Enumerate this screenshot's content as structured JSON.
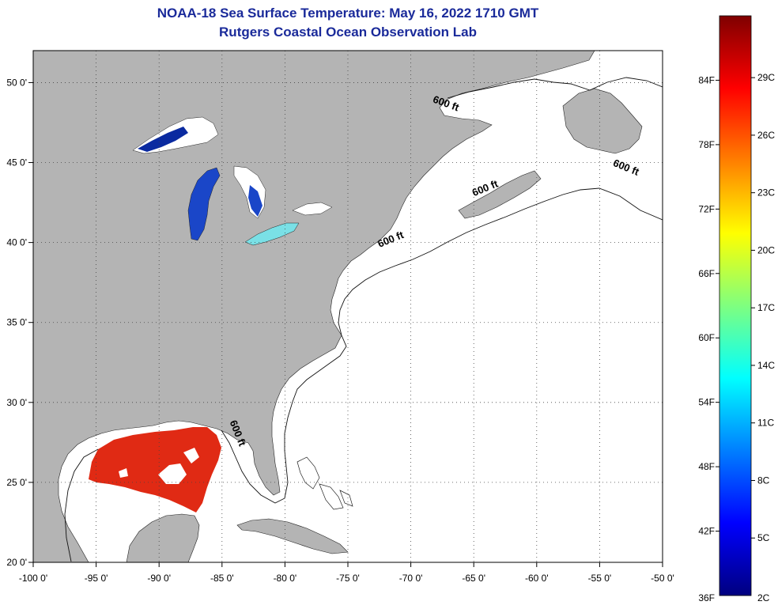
{
  "header": {
    "title": "NOAA-18 Sea Surface Temperature:  May 16, 2022 1710 GMT",
    "subtitle": "Rutgers Coastal Ocean Observation Lab"
  },
  "map": {
    "lon_range": [
      -100,
      -50
    ],
    "lat_range": [
      20,
      52
    ],
    "grid": "dotted",
    "lon_ticks": [
      {
        "value": -100,
        "label": "-100 0'"
      },
      {
        "value": -95,
        "label": "-95 0'"
      },
      {
        "value": -90,
        "label": "-90 0'"
      },
      {
        "value": -85,
        "label": "-85 0'"
      },
      {
        "value": -80,
        "label": "-80 0'"
      },
      {
        "value": -75,
        "label": "-75 0'"
      },
      {
        "value": -70,
        "label": "-70 0'"
      },
      {
        "value": -65,
        "label": "-65 0'"
      },
      {
        "value": -60,
        "label": "-60 0'"
      },
      {
        "value": -55,
        "label": "-55 0'"
      },
      {
        "value": -50,
        "label": "-50 0'"
      }
    ],
    "lat_ticks": [
      {
        "value": 20,
        "label": "20 0'"
      },
      {
        "value": 25,
        "label": "25 0'"
      },
      {
        "value": 30,
        "label": "30 0'"
      },
      {
        "value": 35,
        "label": "35 0'"
      },
      {
        "value": 40,
        "label": "40 0'"
      },
      {
        "value": 45,
        "label": "45 0'"
      },
      {
        "value": 50,
        "label": "50 0'"
      }
    ],
    "contour_labels": [
      {
        "text": "600 ft",
        "lon": -67.3,
        "lat": 48.5
      },
      {
        "text": "600 ft",
        "lon": -53.0,
        "lat": 44.5
      },
      {
        "text": "600 ft",
        "lon": -64.0,
        "lat": 43.2
      },
      {
        "text": "600 ft",
        "lon": -71.5,
        "lat": 40.0
      },
      {
        "text": "600 ft",
        "lon": -84.0,
        "lat": 28.0
      }
    ],
    "colors": {
      "land": "#b4b4b4",
      "ocean": "#ffffff",
      "gulf_sst": "#e02a14",
      "lake_cold": "#0a2aa0",
      "lake_erie": "#7ae0e6"
    }
  },
  "colorbar": {
    "colors": [
      "#00007f",
      "#0000ff",
      "#007fff",
      "#00ffff",
      "#7fff7f",
      "#ffff00",
      "#ff7f00",
      "#ff0000",
      "#7f0000"
    ],
    "fahrenheit": [
      {
        "value": 36,
        "label": "36F"
      },
      {
        "value": 42,
        "label": "42F"
      },
      {
        "value": 48,
        "label": "48F"
      },
      {
        "value": 54,
        "label": "54F"
      },
      {
        "value": 60,
        "label": "60F"
      },
      {
        "value": 66,
        "label": "66F"
      },
      {
        "value": 72,
        "label": "72F"
      },
      {
        "value": 78,
        "label": "78F"
      },
      {
        "value": 84,
        "label": "84F"
      }
    ],
    "celsius": [
      {
        "value": 2,
        "label": "2C"
      },
      {
        "value": 5,
        "label": "5C"
      },
      {
        "value": 8,
        "label": "8C"
      },
      {
        "value": 11,
        "label": "11C"
      },
      {
        "value": 14,
        "label": "14C"
      },
      {
        "value": 17,
        "label": "17C"
      },
      {
        "value": 20,
        "label": "20C"
      },
      {
        "value": 23,
        "label": "23C"
      },
      {
        "value": 26,
        "label": "26C"
      },
      {
        "value": 29,
        "label": "29C"
      }
    ]
  }
}
